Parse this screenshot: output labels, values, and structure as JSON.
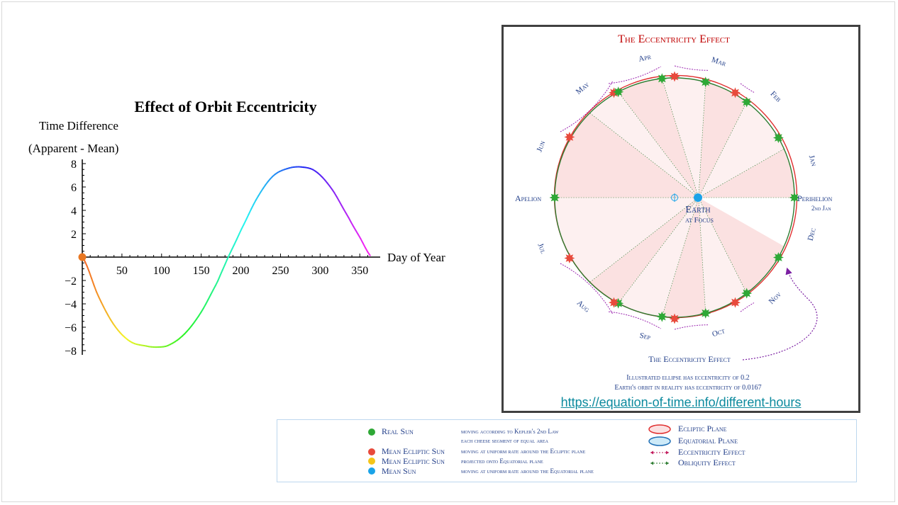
{
  "chart_data": {
    "type": "line",
    "title": "Effect of Orbit Eccentricity",
    "ylabel_line1": "Time Difference",
    "ylabel_line2": "(Apparent - Mean)",
    "xlabel": "Day of Year",
    "xticks": [
      50,
      100,
      150,
      200,
      250,
      300,
      350
    ],
    "yticks": [
      8,
      6,
      4,
      2,
      -2,
      -4,
      -6,
      -8
    ],
    "xlim": [
      0,
      365
    ],
    "ylim": [
      -8,
      8
    ],
    "x": [
      0,
      20,
      40,
      60,
      80,
      95,
      110,
      130,
      150,
      170,
      184,
      200,
      220,
      240,
      260,
      278,
      295,
      315,
      335,
      350,
      365
    ],
    "y": [
      0,
      -3.3,
      -5.8,
      -7.2,
      -7.6,
      -7.7,
      -7.5,
      -6.5,
      -4.7,
      -2.2,
      0,
      2.3,
      5.0,
      6.9,
      7.6,
      7.7,
      7.3,
      5.8,
      3.5,
      1.7,
      0
    ],
    "start_marker": {
      "x": 0,
      "y": 0
    },
    "colors": {
      "axis": "#000000",
      "start_marker": "#e87722"
    }
  },
  "orbit_diagram": {
    "title": "The Eccentricity Effect",
    "months": [
      "Jan",
      "Feb",
      "Mar",
      "Apr",
      "May",
      "Jun",
      "Jul",
      "Aug",
      "Sep",
      "Oct",
      "Nov",
      "Dec"
    ],
    "perihelion": "Perihelion",
    "perihelion_date": "2nd Jan",
    "apelion": "Apelion",
    "earth": "Earth",
    "earth_sub": "at Focus",
    "callout": "The Eccentricity Effect",
    "note1": "Illustrated ellipse has eccentricity of 0.2",
    "note2": "Earth's orbit in reality has eccentricity of 0.0167",
    "eccentricity": 0.2,
    "colors": {
      "title": "#c00000",
      "label": "#1f3c88",
      "ecliptic": "#e03030",
      "orbit": "#2e7d32",
      "real_sun": "#2ea836",
      "mean_ecliptic_sun": "#e84a3c",
      "earth": "#1aa3e8",
      "segment_a": "#fbe1e1",
      "segment_b": "#fdf0f0",
      "ecc_arrow": "#9c27b0"
    }
  },
  "source_link": "https://equation-of-time.info/different-hours",
  "legend": {
    "items": [
      {
        "name": "Real Sun",
        "desc": "moving according to Kepler's 2nd Law",
        "desc2": "each cheese segment of equal area",
        "color": "#2ea836"
      },
      {
        "name": "Mean Ecliptic Sun",
        "desc": "moving at uniform rate around the Ecliptic plane",
        "color": "#e84a3c"
      },
      {
        "name": "Mean Ecliptic Sun",
        "desc": "projected onto Equatorial plane",
        "color": "#f5c518"
      },
      {
        "name": "Mean Sun",
        "desc": "moving at uniform rate around the Equatorial plane",
        "color": "#1aa3e8"
      }
    ],
    "right": [
      {
        "name": "Ecliptic Plane",
        "color": "#e03030"
      },
      {
        "name": "Equatorial Plane",
        "color": "#1aa3e8"
      },
      {
        "name": "Eccentricity Effect",
        "color": "#c2185b"
      },
      {
        "name": "Obliquity Effect",
        "color": "#2e7d32"
      }
    ]
  }
}
